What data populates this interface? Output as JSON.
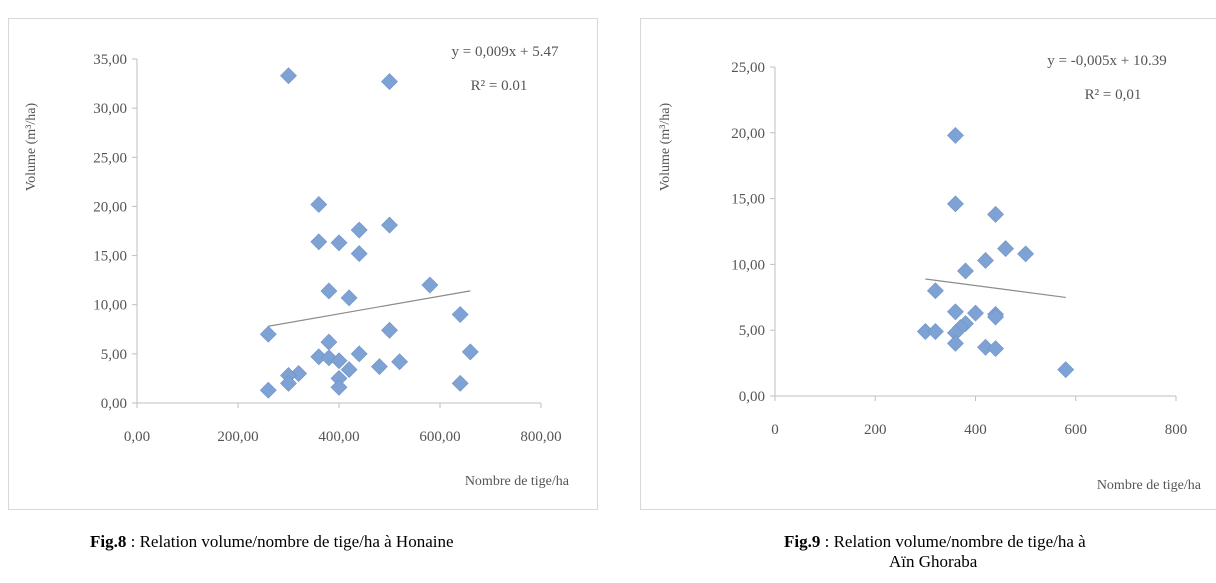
{
  "chart_data": [
    {
      "type": "scatter",
      "title": "",
      "xlabel": "Nombre de tige/ha",
      "ylabel": "Volume (m³/ha)",
      "xlim": [
        0,
        800
      ],
      "ylim": [
        0,
        35
      ],
      "xticks": [
        0,
        200,
        400,
        600,
        800
      ],
      "yticks": [
        0,
        5,
        10,
        15,
        20,
        25,
        30,
        35
      ],
      "xtick_labels": [
        "0,00",
        "200,00",
        "400,00",
        "600,00",
        "800,00"
      ],
      "ytick_labels": [
        "0,00",
        "5,00",
        "10,00",
        "15,00",
        "20,00",
        "25,00",
        "30,00",
        "35,00"
      ],
      "grid": false,
      "marker": "diamond",
      "color": "#7fa2d4",
      "trend_color": "#8c8c8c",
      "trend": {
        "slope": 0.009,
        "intercept": 5.47,
        "x_range": [
          260,
          660
        ]
      },
      "annotations": {
        "equation": "y = 0,009x + 5.47",
        "r2": "R² = 0.01"
      },
      "series": [
        {
          "points": [
            [
              300,
              33.3
            ],
            [
              500,
              32.7
            ],
            [
              360,
              20.2
            ],
            [
              500,
              18.1
            ],
            [
              440,
              17.6
            ],
            [
              360,
              16.4
            ],
            [
              400,
              16.3
            ],
            [
              440,
              15.2
            ],
            [
              580,
              12.0
            ],
            [
              380,
              11.4
            ],
            [
              420,
              10.7
            ],
            [
              640,
              9.0
            ],
            [
              500,
              7.4
            ],
            [
              260,
              7.0
            ],
            [
              380,
              6.2
            ],
            [
              660,
              5.2
            ],
            [
              440,
              5.0
            ],
            [
              360,
              4.7
            ],
            [
              380,
              4.6
            ],
            [
              400,
              4.3
            ],
            [
              520,
              4.2
            ],
            [
              480,
              3.7
            ],
            [
              420,
              3.4
            ],
            [
              320,
              3.0
            ],
            [
              300,
              2.8
            ],
            [
              400,
              2.5
            ],
            [
              300,
              2.0
            ],
            [
              640,
              2.0
            ],
            [
              400,
              1.6
            ],
            [
              260,
              1.3
            ]
          ]
        }
      ],
      "caption": {
        "label": "Fig.8",
        "text": " : Relation volume/nombre de tige/ha à Honaine"
      }
    },
    {
      "type": "scatter",
      "title": "",
      "xlabel": "Nombre de tige/ha",
      "ylabel": "Volume (m³/ha)",
      "xlim": [
        0,
        800
      ],
      "ylim": [
        0,
        25
      ],
      "xticks": [
        0,
        200,
        400,
        600,
        800
      ],
      "yticks": [
        0,
        5,
        10,
        15,
        20,
        25
      ],
      "xtick_labels": [
        "0",
        "200",
        "400",
        "600",
        "800"
      ],
      "ytick_labels": [
        "0,00",
        "5,00",
        "10,00",
        "15,00",
        "20,00",
        "25,00"
      ],
      "grid": false,
      "marker": "diamond",
      "color": "#7fa2d4",
      "trend_color": "#8c8c8c",
      "trend": {
        "slope": -0.005,
        "intercept": 10.39,
        "x_range": [
          300,
          580
        ]
      },
      "annotations": {
        "equation": "y = -0,005x + 10.39",
        "r2": "R² = 0,01"
      },
      "series": [
        {
          "points": [
            [
              360,
              19.8
            ],
            [
              360,
              14.6
            ],
            [
              440,
              13.8
            ],
            [
              460,
              11.2
            ],
            [
              500,
              10.8
            ],
            [
              420,
              10.3
            ],
            [
              380,
              9.5
            ],
            [
              320,
              8.0
            ],
            [
              360,
              6.4
            ],
            [
              400,
              6.3
            ],
            [
              440,
              6.2
            ],
            [
              440,
              6.0
            ],
            [
              380,
              5.5
            ],
            [
              370,
              5.2
            ],
            [
              300,
              4.9
            ],
            [
              320,
              4.9
            ],
            [
              360,
              4.8
            ],
            [
              360,
              4.0
            ],
            [
              420,
              3.7
            ],
            [
              440,
              3.6
            ],
            [
              580,
              2.0
            ]
          ]
        }
      ],
      "caption": {
        "label": "Fig.9",
        "text": " : Relation volume/nombre de tige/ha à",
        "text2": "Aïn Ghoraba"
      }
    }
  ]
}
